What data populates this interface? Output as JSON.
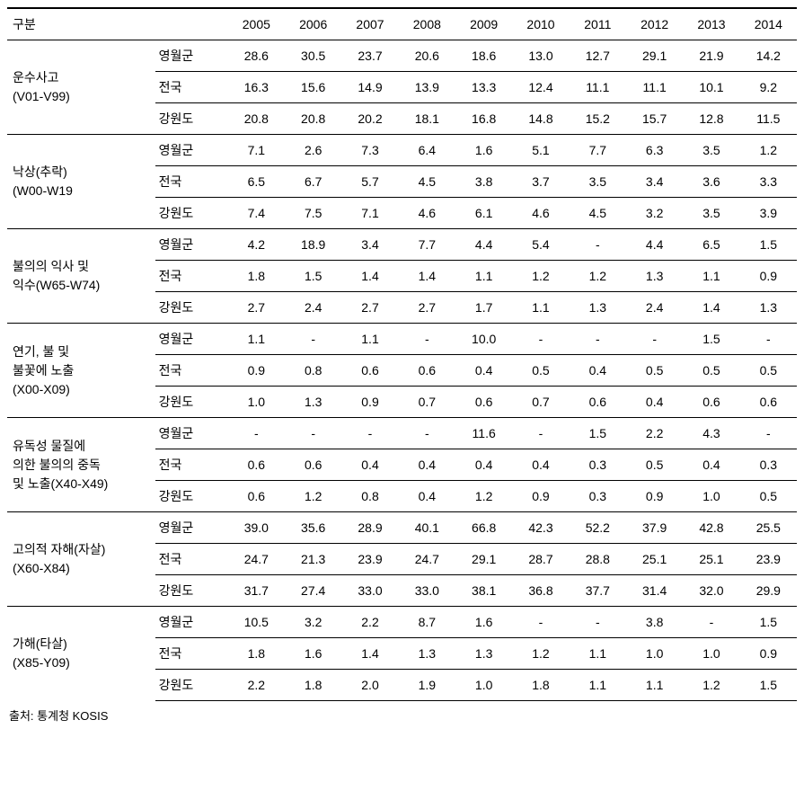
{
  "header": {
    "category_label": "구분",
    "years": [
      "2005",
      "2006",
      "2007",
      "2008",
      "2009",
      "2010",
      "2011",
      "2012",
      "2013",
      "2014"
    ]
  },
  "regions": [
    "영월군",
    "전국",
    "강원도"
  ],
  "groups": [
    {
      "label": "운수사고\n(V01-V99)",
      "rows": [
        [
          "28.6",
          "30.5",
          "23.7",
          "20.6",
          "18.6",
          "13.0",
          "12.7",
          "29.1",
          "21.9",
          "14.2"
        ],
        [
          "16.3",
          "15.6",
          "14.9",
          "13.9",
          "13.3",
          "12.4",
          "11.1",
          "11.1",
          "10.1",
          "9.2"
        ],
        [
          "20.8",
          "20.8",
          "20.2",
          "18.1",
          "16.8",
          "14.8",
          "15.2",
          "15.7",
          "12.8",
          "11.5"
        ]
      ]
    },
    {
      "label": "낙상(추락)\n(W00-W19",
      "rows": [
        [
          "7.1",
          "2.6",
          "7.3",
          "6.4",
          "1.6",
          "5.1",
          "7.7",
          "6.3",
          "3.5",
          "1.2"
        ],
        [
          "6.5",
          "6.7",
          "5.7",
          "4.5",
          "3.8",
          "3.7",
          "3.5",
          "3.4",
          "3.6",
          "3.3"
        ],
        [
          "7.4",
          "7.5",
          "7.1",
          "4.6",
          "6.1",
          "4.6",
          "4.5",
          "3.2",
          "3.5",
          "3.9"
        ]
      ]
    },
    {
      "label": "불의의 익사 및\n익수(W65-W74)",
      "rows": [
        [
          "4.2",
          "18.9",
          "3.4",
          "7.7",
          "4.4",
          "5.4",
          "-",
          "4.4",
          "6.5",
          "1.5"
        ],
        [
          "1.8",
          "1.5",
          "1.4",
          "1.4",
          "1.1",
          "1.2",
          "1.2",
          "1.3",
          "1.1",
          "0.9"
        ],
        [
          "2.7",
          "2.4",
          "2.7",
          "2.7",
          "1.7",
          "1.1",
          "1.3",
          "2.4",
          "1.4",
          "1.3"
        ]
      ]
    },
    {
      "label": "연기, 불 및\n불꽃에 노출\n(X00-X09)",
      "rows": [
        [
          "1.1",
          "-",
          "1.1",
          "-",
          "10.0",
          "-",
          "-",
          "-",
          "1.5",
          "-"
        ],
        [
          "0.9",
          "0.8",
          "0.6",
          "0.6",
          "0.4",
          "0.5",
          "0.4",
          "0.5",
          "0.5",
          "0.5"
        ],
        [
          "1.0",
          "1.3",
          "0.9",
          "0.7",
          "0.6",
          "0.7",
          "0.6",
          "0.4",
          "0.6",
          "0.6"
        ]
      ]
    },
    {
      "label": "유독성 물질에\n의한 불의의 중독\n및 노출(X40-X49)",
      "rows": [
        [
          "-",
          "-",
          "-",
          "-",
          "11.6",
          "-",
          "1.5",
          "2.2",
          "4.3",
          "-"
        ],
        [
          "0.6",
          "0.6",
          "0.4",
          "0.4",
          "0.4",
          "0.4",
          "0.3",
          "0.5",
          "0.4",
          "0.3"
        ],
        [
          "0.6",
          "1.2",
          "0.8",
          "0.4",
          "1.2",
          "0.9",
          "0.3",
          "0.9",
          "1.0",
          "0.5"
        ]
      ]
    },
    {
      "label": "고의적 자해(자살)\n(X60-X84)",
      "rows": [
        [
          "39.0",
          "35.6",
          "28.9",
          "40.1",
          "66.8",
          "42.3",
          "52.2",
          "37.9",
          "42.8",
          "25.5"
        ],
        [
          "24.7",
          "21.3",
          "23.9",
          "24.7",
          "29.1",
          "28.7",
          "28.8",
          "25.1",
          "25.1",
          "23.9"
        ],
        [
          "31.7",
          "27.4",
          "33.0",
          "33.0",
          "38.1",
          "36.8",
          "37.7",
          "31.4",
          "32.0",
          "29.9"
        ]
      ]
    },
    {
      "label": "가해(타살)\n(X85-Y09)",
      "rows": [
        [
          "10.5",
          "3.2",
          "2.2",
          "8.7",
          "1.6",
          "-",
          "-",
          "3.8",
          "-",
          "1.5"
        ],
        [
          "1.8",
          "1.6",
          "1.4",
          "1.3",
          "1.3",
          "1.2",
          "1.1",
          "1.0",
          "1.0",
          "0.9"
        ],
        [
          "2.2",
          "1.8",
          "2.0",
          "1.9",
          "1.0",
          "1.8",
          "1.1",
          "1.1",
          "1.2",
          "1.5"
        ]
      ]
    }
  ],
  "source": "출처: 통계청 KOSIS"
}
